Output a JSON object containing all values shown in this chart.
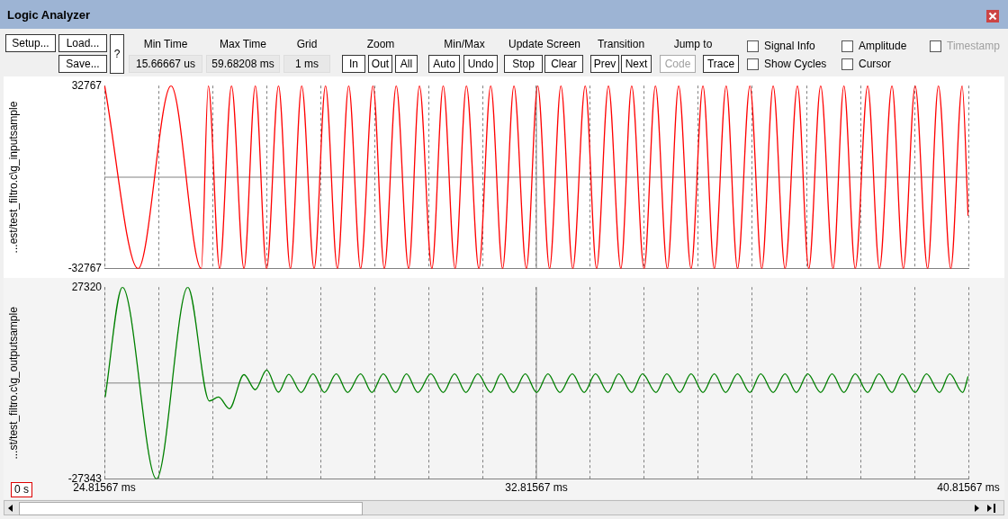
{
  "chart_data": [
    {
      "type": "other",
      "title": "Logic Analyzer",
      "annotations": [
        "Setup...",
        "Load...",
        "Save...",
        "?",
        "Min Time",
        "15.66667 us",
        "Max Time",
        "59.68208 ms",
        "Grid",
        "1 ms",
        "Zoom",
        "In",
        "Out",
        "All",
        "Min/Max",
        "Auto",
        "Undo",
        "Update Screen",
        "Stop",
        "Clear",
        "Transition",
        "Prev",
        "Next",
        "Jump to",
        "Code",
        "Trace",
        "Signal Info",
        "Amplitude",
        "Timestamp",
        "Show Cycles",
        "Cursor"
      ]
    },
    {
      "type": "line",
      "ylabel": "...est/test_filtro.c\\g_inputsample",
      "xlim": [
        24.81567,
        40.81567
      ],
      "ylim": [
        -32767,
        32767
      ],
      "yticks": [
        -32767,
        32767
      ],
      "tick_labels": "y",
      "grid": "x",
      "marker": "none",
      "legend": false,
      "xticks": [
        {
          "value": 24.81567,
          "label": null
        },
        {
          "value": 25.81567,
          "label": null
        },
        {
          "value": 26.81567,
          "label": null
        },
        {
          "value": 27.81567,
          "label": null
        },
        {
          "value": 28.81567,
          "label": null
        },
        {
          "value": 29.81567,
          "label": null
        },
        {
          "value": 30.81567,
          "label": null
        },
        {
          "value": 31.81567,
          "label": null
        },
        {
          "value": 32.81567,
          "label": null
        },
        {
          "value": 33.81567,
          "label": null
        },
        {
          "value": 34.81567,
          "label": null
        },
        {
          "value": 35.81567,
          "label": null
        },
        {
          "value": 36.81567,
          "label": null
        },
        {
          "value": 37.81567,
          "label": null
        },
        {
          "value": 38.81567,
          "label": null
        },
        {
          "value": 39.81567,
          "label": null
        },
        {
          "value": 40.81567,
          "label": null
        }
      ],
      "ref_lines": [
        {
          "axis": "y",
          "value": 0,
          "color": "#808080"
        },
        {
          "axis": "x",
          "value": 32.81567,
          "color": "#808080"
        }
      ],
      "x": [
        24.82,
        25.44,
        26.05,
        26.61,
        26.74,
        26.95,
        27.17,
        27.4,
        27.61,
        27.82,
        28.04,
        28.26,
        28.47,
        28.7,
        28.91,
        29.13,
        29.34,
        29.56,
        29.79,
        30.0,
        30.22,
        30.45,
        30.65,
        30.88,
        31.09,
        31.31,
        31.52,
        31.75,
        31.97,
        32.19,
        32.4,
        32.63,
        32.84,
        33.06,
        33.27,
        33.49,
        33.72,
        33.93,
        34.15,
        34.38,
        34.58,
        34.81,
        35.02,
        35.24,
        35.45,
        35.68,
        35.9,
        36.11,
        36.33,
        36.54,
        36.77,
        36.99,
        37.2,
        37.42,
        37.65,
        37.86,
        38.08,
        38.31,
        38.51,
        38.72,
        38.95,
        39.17,
        39.4,
        39.61,
        39.83,
        40.06,
        40.26,
        40.49,
        40.7,
        40.81
      ],
      "series": [
        {
          "color": "#ff0000",
          "values": [
            32700,
            -32700,
            32700,
            -32700,
            32700,
            -32700,
            32700,
            -32700,
            32700,
            -32700,
            32700,
            -32700,
            32700,
            -32700,
            32700,
            -32700,
            32700,
            -32700,
            32700,
            -32700,
            32700,
            -32700,
            32700,
            -32700,
            32700,
            -32700,
            32700,
            -32700,
            32700,
            -32700,
            32700,
            -32700,
            32700,
            -32700,
            32700,
            -32700,
            32700,
            -32700,
            32700,
            -32700,
            32700,
            -32700,
            32700,
            -32700,
            32700,
            -32700,
            32700,
            -32700,
            32700,
            -32700,
            32700,
            -32700,
            32700,
            -32700,
            32700,
            -32700,
            32700,
            -32700,
            32700,
            -32700,
            32700,
            -32700,
            32700,
            -32700,
            32700,
            -32700,
            32700,
            -32700,
            32700,
            -13800
          ]
        }
      ]
    },
    {
      "type": "line",
      "ylabel": "...st/test_filtro.c\\g_outputsample",
      "xlim": [
        24.81567,
        40.81567
      ],
      "ylim": [
        -27343,
        27320
      ],
      "yticks": [
        -27343,
        27320
      ],
      "grid": "x",
      "marker": "none",
      "legend": false,
      "annotations": [
        "0 s"
      ],
      "xticks": [
        {
          "value": 24.81567,
          "label": "24.81567 ms"
        },
        {
          "value": 25.81567,
          "label": null
        },
        {
          "value": 26.81567,
          "label": null
        },
        {
          "value": 27.81567,
          "label": null
        },
        {
          "value": 28.81567,
          "label": null
        },
        {
          "value": 29.81567,
          "label": null
        },
        {
          "value": 30.81567,
          "label": null
        },
        {
          "value": 31.81567,
          "label": null
        },
        {
          "value": 32.81567,
          "label": "32.81567 ms"
        },
        {
          "value": 33.81567,
          "label": null
        },
        {
          "value": 34.81567,
          "label": null
        },
        {
          "value": 35.81567,
          "label": null
        },
        {
          "value": 36.81567,
          "label": null
        },
        {
          "value": 37.81567,
          "label": null
        },
        {
          "value": 38.81567,
          "label": null
        },
        {
          "value": 39.81567,
          "label": null
        },
        {
          "value": 40.81567,
          "label": "40.81567 ms"
        }
      ],
      "ref_lines": [
        {
          "axis": "y",
          "value": 0,
          "color": "#808080"
        },
        {
          "axis": "x",
          "value": 32.81567,
          "color": "#808080"
        }
      ],
      "x": [
        24.83,
        25.15,
        25.78,
        26.36,
        26.76,
        26.93,
        27.13,
        27.4,
        27.61,
        27.82,
        28.04,
        28.23,
        28.46,
        28.68,
        28.89,
        29.11,
        29.32,
        29.56,
        29.77,
        29.98,
        30.21,
        30.41,
        30.62,
        30.86,
        31.09,
        31.3,
        31.51,
        31.73,
        31.97,
        32.16,
        32.39,
        32.61,
        32.82,
        33.03,
        33.25,
        33.48,
        33.7,
        33.91,
        34.14,
        34.34,
        34.58,
        34.78,
        35.03,
        35.23,
        35.47,
        35.68,
        35.9,
        36.11,
        36.32,
        36.54,
        36.77,
        36.97,
        37.2,
        37.42,
        37.63,
        37.84,
        38.08,
        38.29,
        38.51,
        38.72,
        38.95,
        39.16,
        39.4,
        39.59,
        39.83,
        40.04,
        40.28,
        40.47,
        40.71,
        40.81
      ],
      "series": [
        {
          "color": "#008000",
          "values": [
            -4000,
            27300,
            -27300,
            27300,
            -5100,
            -4000,
            -7300,
            2400,
            -1900,
            3700,
            -2600,
            2500,
            -2700,
            2600,
            -2700,
            2600,
            -2700,
            2600,
            -2700,
            2600,
            -2700,
            2600,
            -2700,
            2600,
            -2700,
            2600,
            -2700,
            2600,
            -2700,
            2600,
            -2700,
            2600,
            -2700,
            2600,
            -2700,
            2600,
            -2700,
            2600,
            -2700,
            2600,
            -2700,
            2600,
            -2700,
            2600,
            -2700,
            2600,
            -2700,
            2600,
            -2700,
            2600,
            -2700,
            2600,
            -2700,
            2600,
            -2700,
            2600,
            -2700,
            2600,
            -2700,
            2600,
            -2700,
            2600,
            -2700,
            2600,
            -2700,
            2600,
            -2700,
            2600,
            -2700,
            1900
          ]
        }
      ]
    }
  ]
}
